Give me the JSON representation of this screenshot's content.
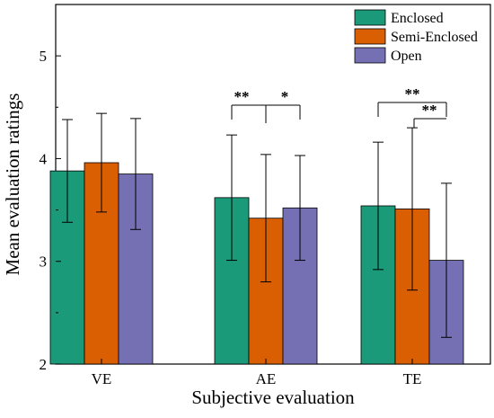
{
  "chart_data": {
    "type": "bar",
    "xlabel": "Subjective evaluation",
    "ylabel": "Mean evaluation ratings",
    "ylim": [
      2,
      5.5
    ],
    "yticks": [
      "2",
      "3",
      "4",
      "5"
    ],
    "categories": [
      "VE",
      "AE",
      "TE"
    ],
    "legend_position": "top-right",
    "series": [
      {
        "name": "Enclosed",
        "color": "#1a9a78",
        "values": [
          3.88,
          3.62,
          3.54
        ],
        "error": [
          0.5,
          0.61,
          0.62
        ]
      },
      {
        "name": "Semi-Enclosed",
        "color": "#d95f02",
        "values": [
          3.96,
          3.42,
          3.51
        ],
        "error": [
          0.48,
          0.62,
          0.79
        ]
      },
      {
        "name": "Open",
        "color": "#7570b3",
        "values": [
          3.85,
          3.52,
          3.01
        ],
        "error": [
          0.54,
          0.51,
          0.75
        ]
      }
    ],
    "significance": [
      {
        "category": "AE",
        "from_series": 0,
        "to_series": 1,
        "label": "**"
      },
      {
        "category": "AE",
        "from_series": 1,
        "to_series": 2,
        "label": "*"
      },
      {
        "category": "TE",
        "from_series": 0,
        "to_series": 2,
        "label": "**"
      },
      {
        "category": "TE",
        "from_series": 1,
        "to_series": 2,
        "label": "**"
      }
    ]
  }
}
